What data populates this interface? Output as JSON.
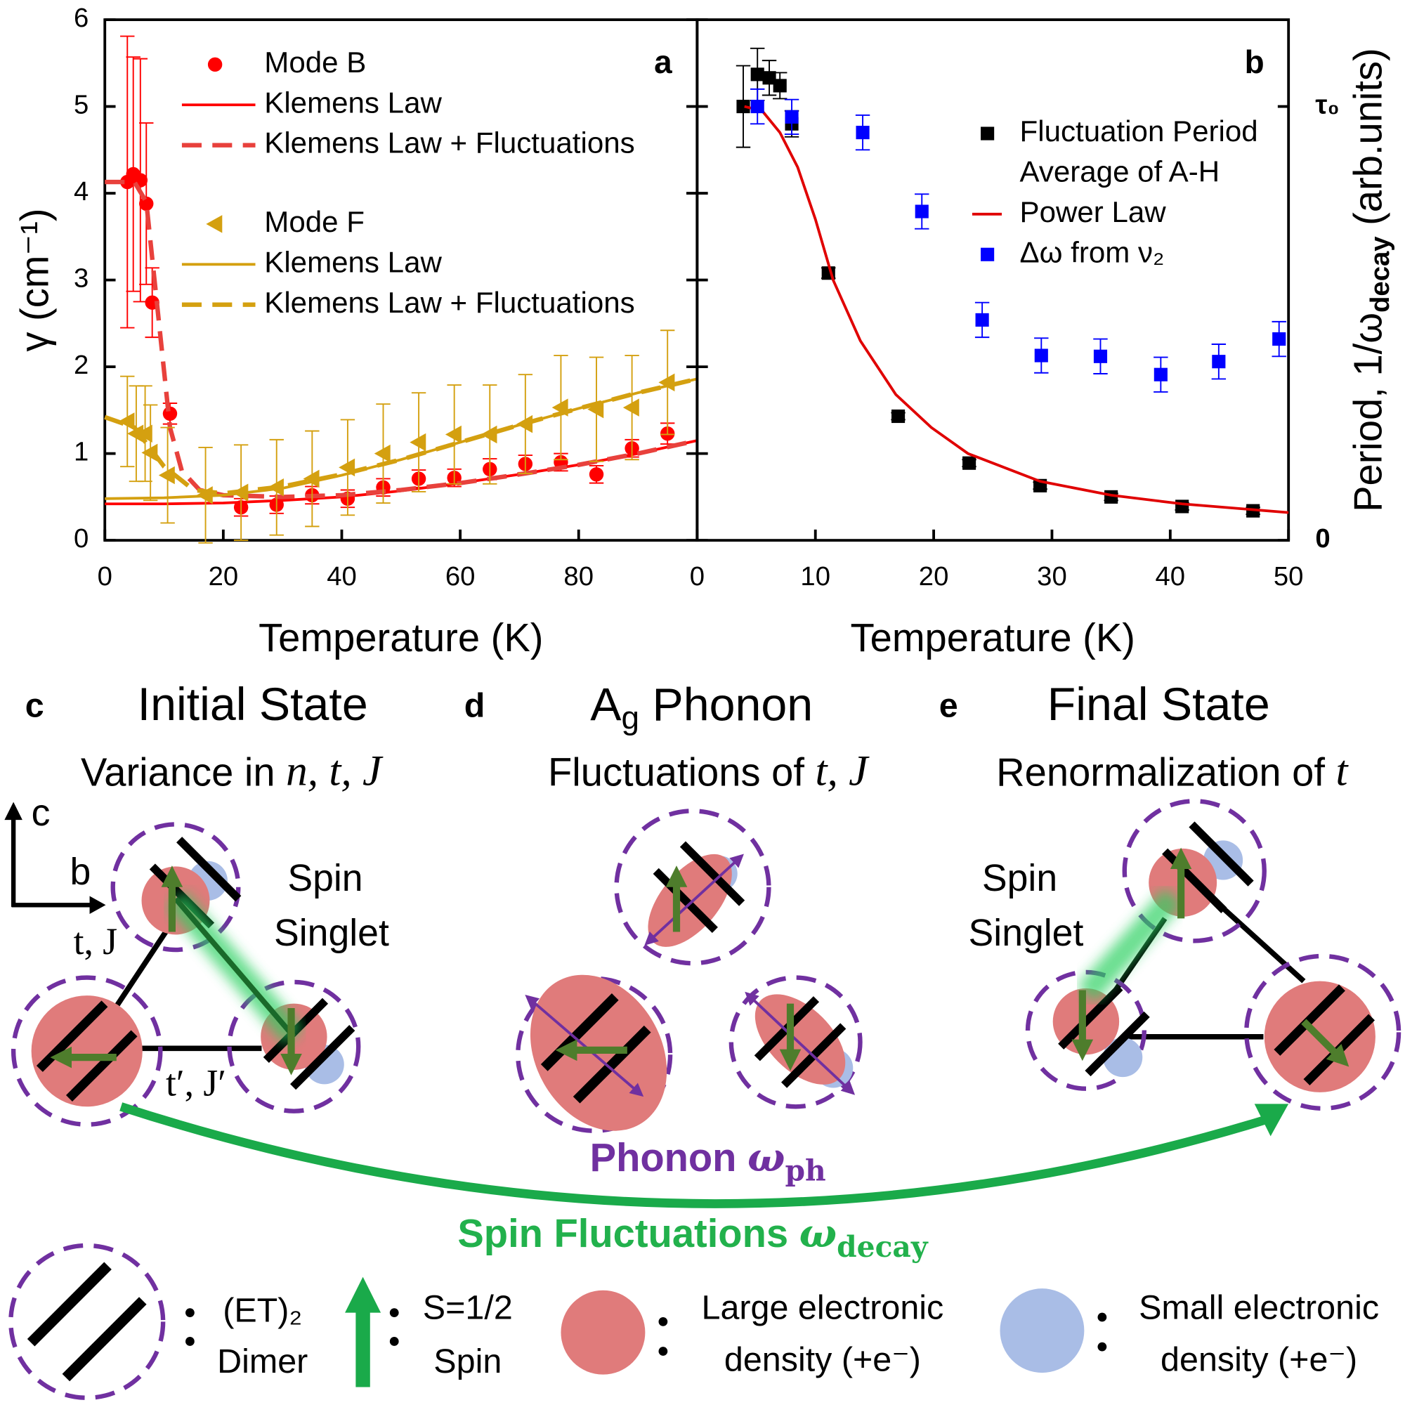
{
  "chart_data": [
    {
      "type": "scatter",
      "annotation": "a",
      "xlabel": "Temperature (K)",
      "ylabel": "γ (cm⁻¹)",
      "xlim": [
        0,
        100
      ],
      "ylim": [
        0,
        6
      ],
      "xticks": [
        0,
        20,
        40,
        60,
        80
      ],
      "yticks": [
        0,
        1,
        2,
        3,
        4,
        5,
        6
      ],
      "legend": "upper left",
      "series": [
        {
          "name": "Mode B",
          "color": "#ff0000",
          "marker": "circle",
          "x": [
            3.8,
            4.8,
            6,
            7,
            8,
            11,
            23,
            29,
            35,
            41,
            47,
            53,
            59,
            65,
            71,
            77,
            83,
            89,
            95
          ],
          "values": [
            4.13,
            4.22,
            4.15,
            3.88,
            2.74,
            1.46,
            0.38,
            0.41,
            0.52,
            0.48,
            0.61,
            0.71,
            0.72,
            0.82,
            0.88,
            0.9,
            0.76,
            1.06,
            1.23
          ],
          "errors": [
            1.68,
            1.35,
            1.4,
            0.93,
            0.4,
            0.12,
            0.1,
            0.1,
            0.1,
            0.1,
            0.1,
            0.1,
            0.1,
            0.12,
            0.1,
            0.1,
            0.1,
            0.1,
            0.12
          ]
        },
        {
          "name": "Klemens Law",
          "color": "#ff0000",
          "line": "solid",
          "x": [
            0,
            10,
            20,
            30,
            40,
            50,
            60,
            70,
            80,
            90,
            100
          ],
          "values": [
            0.42,
            0.42,
            0.43,
            0.46,
            0.5,
            0.57,
            0.66,
            0.76,
            0.87,
            1.0,
            1.15
          ]
        },
        {
          "name": "Klemens Law + Fluctuations",
          "color": "#e8413c",
          "line": "dashed",
          "x": [
            0,
            5,
            7,
            9,
            11,
            13,
            16,
            20,
            30,
            40,
            50,
            60,
            70,
            80,
            90,
            100
          ],
          "values": [
            4.13,
            4.13,
            3.9,
            2.6,
            1.3,
            0.8,
            0.58,
            0.52,
            0.5,
            0.52,
            0.58,
            0.66,
            0.76,
            0.87,
            1.0,
            1.15
          ]
        },
        {
          "name": "Mode F",
          "color": "#d4a010",
          "marker": "triangle-left",
          "x": [
            3.8,
            5.3,
            6.8,
            7.7,
            10.6,
            17,
            23,
            29,
            35,
            41,
            47,
            53,
            59,
            65,
            71,
            77,
            83,
            89,
            95
          ],
          "values": [
            1.37,
            1.23,
            1.23,
            1.01,
            0.75,
            0.52,
            0.55,
            0.61,
            0.71,
            0.84,
            1.0,
            1.13,
            1.22,
            1.22,
            1.34,
            1.53,
            1.51,
            1.53,
            1.82
          ],
          "errors": [
            0.52,
            0.55,
            0.55,
            0.55,
            0.55,
            0.55,
            0.55,
            0.55,
            0.55,
            0.55,
            0.57,
            0.57,
            0.57,
            0.57,
            0.57,
            0.6,
            0.6,
            0.6,
            0.6
          ]
        },
        {
          "name": "Klemens Law",
          "color": "#d4a010",
          "line": "solid",
          "x": [
            0,
            10,
            20,
            30,
            40,
            50,
            60,
            70,
            80,
            90,
            100
          ],
          "values": [
            0.48,
            0.49,
            0.52,
            0.6,
            0.75,
            0.93,
            1.13,
            1.33,
            1.52,
            1.7,
            1.86
          ]
        },
        {
          "name": "Klemens Law + Fluctuations",
          "color": "#d4a010",
          "line": "dashed",
          "x": [
            0,
            5,
            10,
            15,
            20,
            30,
            40,
            50,
            60,
            70,
            80,
            90,
            100
          ],
          "values": [
            1.42,
            1.3,
            0.85,
            0.58,
            0.54,
            0.62,
            0.76,
            0.93,
            1.13,
            1.33,
            1.52,
            1.7,
            1.86
          ]
        }
      ]
    },
    {
      "type": "scatter",
      "annotation": "b",
      "xlabel": "Temperature (K)",
      "y2label": {
        "main": "Period, 1/ω",
        "sub": "decay",
        "end": " (arb.units)"
      },
      "xlim": [
        0,
        50
      ],
      "xticks": [
        0,
        10,
        20,
        30,
        40,
        50
      ],
      "y2lim": [
        0,
        6
      ],
      "y2ticks": [
        0,
        {
          "value": 5,
          "label": "τ₀"
        }
      ],
      "legend": "upper right",
      "series": [
        {
          "name": "Fluctuation Period",
          "legend_note": "Average of A-H",
          "color": "#000000",
          "marker": "square",
          "axis": "y2",
          "x": [
            3.9,
            5.1,
            6.1,
            7,
            8,
            11.1,
            17,
            23,
            29,
            35,
            41,
            47
          ],
          "values": [
            5.0,
            5.37,
            5.33,
            5.24,
            4.8,
            3.08,
            1.43,
            0.89,
            0.63,
            0.5,
            0.39,
            0.34
          ],
          "errors": [
            0.47,
            0.3,
            0.2,
            0.15,
            0.15,
            0.06,
            0.04,
            0.04,
            0.04,
            0.04,
            0.04,
            0.04
          ]
        },
        {
          "name": "Power Law",
          "color": "#e00000",
          "line": "solid",
          "axis": "y2",
          "x": [
            4,
            5.5,
            7,
            8.5,
            10,
            11.5,
            13.8,
            16.8,
            19.8,
            22.9,
            29,
            35,
            41,
            50
          ],
          "values": [
            5.0,
            4.95,
            4.7,
            4.3,
            3.7,
            3.0,
            2.3,
            1.68,
            1.3,
            1.0,
            0.68,
            0.52,
            0.42,
            0.32
          ]
        },
        {
          "name": "Δω from ν₂",
          "color": "#0000ff",
          "marker": "square",
          "axis": "y2",
          "x": [
            5.1,
            8,
            14,
            19,
            24.1,
            29.1,
            34.1,
            39.2,
            44.1,
            49.2
          ],
          "values": [
            5.0,
            4.88,
            4.7,
            3.79,
            2.54,
            2.13,
            2.12,
            1.91,
            2.06,
            2.32
          ],
          "errors": [
            0.2,
            0.2,
            0.2,
            0.2,
            0.2,
            0.2,
            0.2,
            0.2,
            0.2,
            0.2
          ]
        }
      ]
    }
  ],
  "diagram": {
    "panels": [
      {
        "letter": "c",
        "title": "Initial State",
        "subtitle": "Variance in ",
        "subtitle_math": "n, t, J"
      },
      {
        "letter": "d",
        "title": "A",
        "title_sub": "g",
        "title_rest": " Phonon",
        "subtitle": "Fluctuations of ",
        "subtitle_math": "t, J"
      },
      {
        "letter": "e",
        "title": "Final State",
        "subtitle": "Renormalization of ",
        "subtitle_math": "t"
      }
    ],
    "axes": {
      "vertical": "c",
      "horizontal": "b"
    },
    "bond_labels": {
      "t": "t, J",
      "tprime": "t′, J′"
    },
    "singlet_labels": [
      [
        "Spin",
        "Singlet"
      ],
      [
        "Spin",
        "Singlet"
      ]
    ],
    "phonon": {
      "text": "Phonon ",
      "symbol": "ω",
      "sub": "ph"
    },
    "spin_fluctuations": {
      "text": "Spin Fluctuations ",
      "symbol": "ω",
      "sub": "decay"
    },
    "legend": [
      {
        "line1": "(ET)₂",
        "line2": "Dimer"
      },
      {
        "line1": "S=1/2",
        "line2": "Spin"
      },
      {
        "line1": "Large electronic",
        "line2": "density (+e⁻)"
      },
      {
        "line1": "Small electronic",
        "line2": "density (+e⁻)"
      }
    ]
  }
}
